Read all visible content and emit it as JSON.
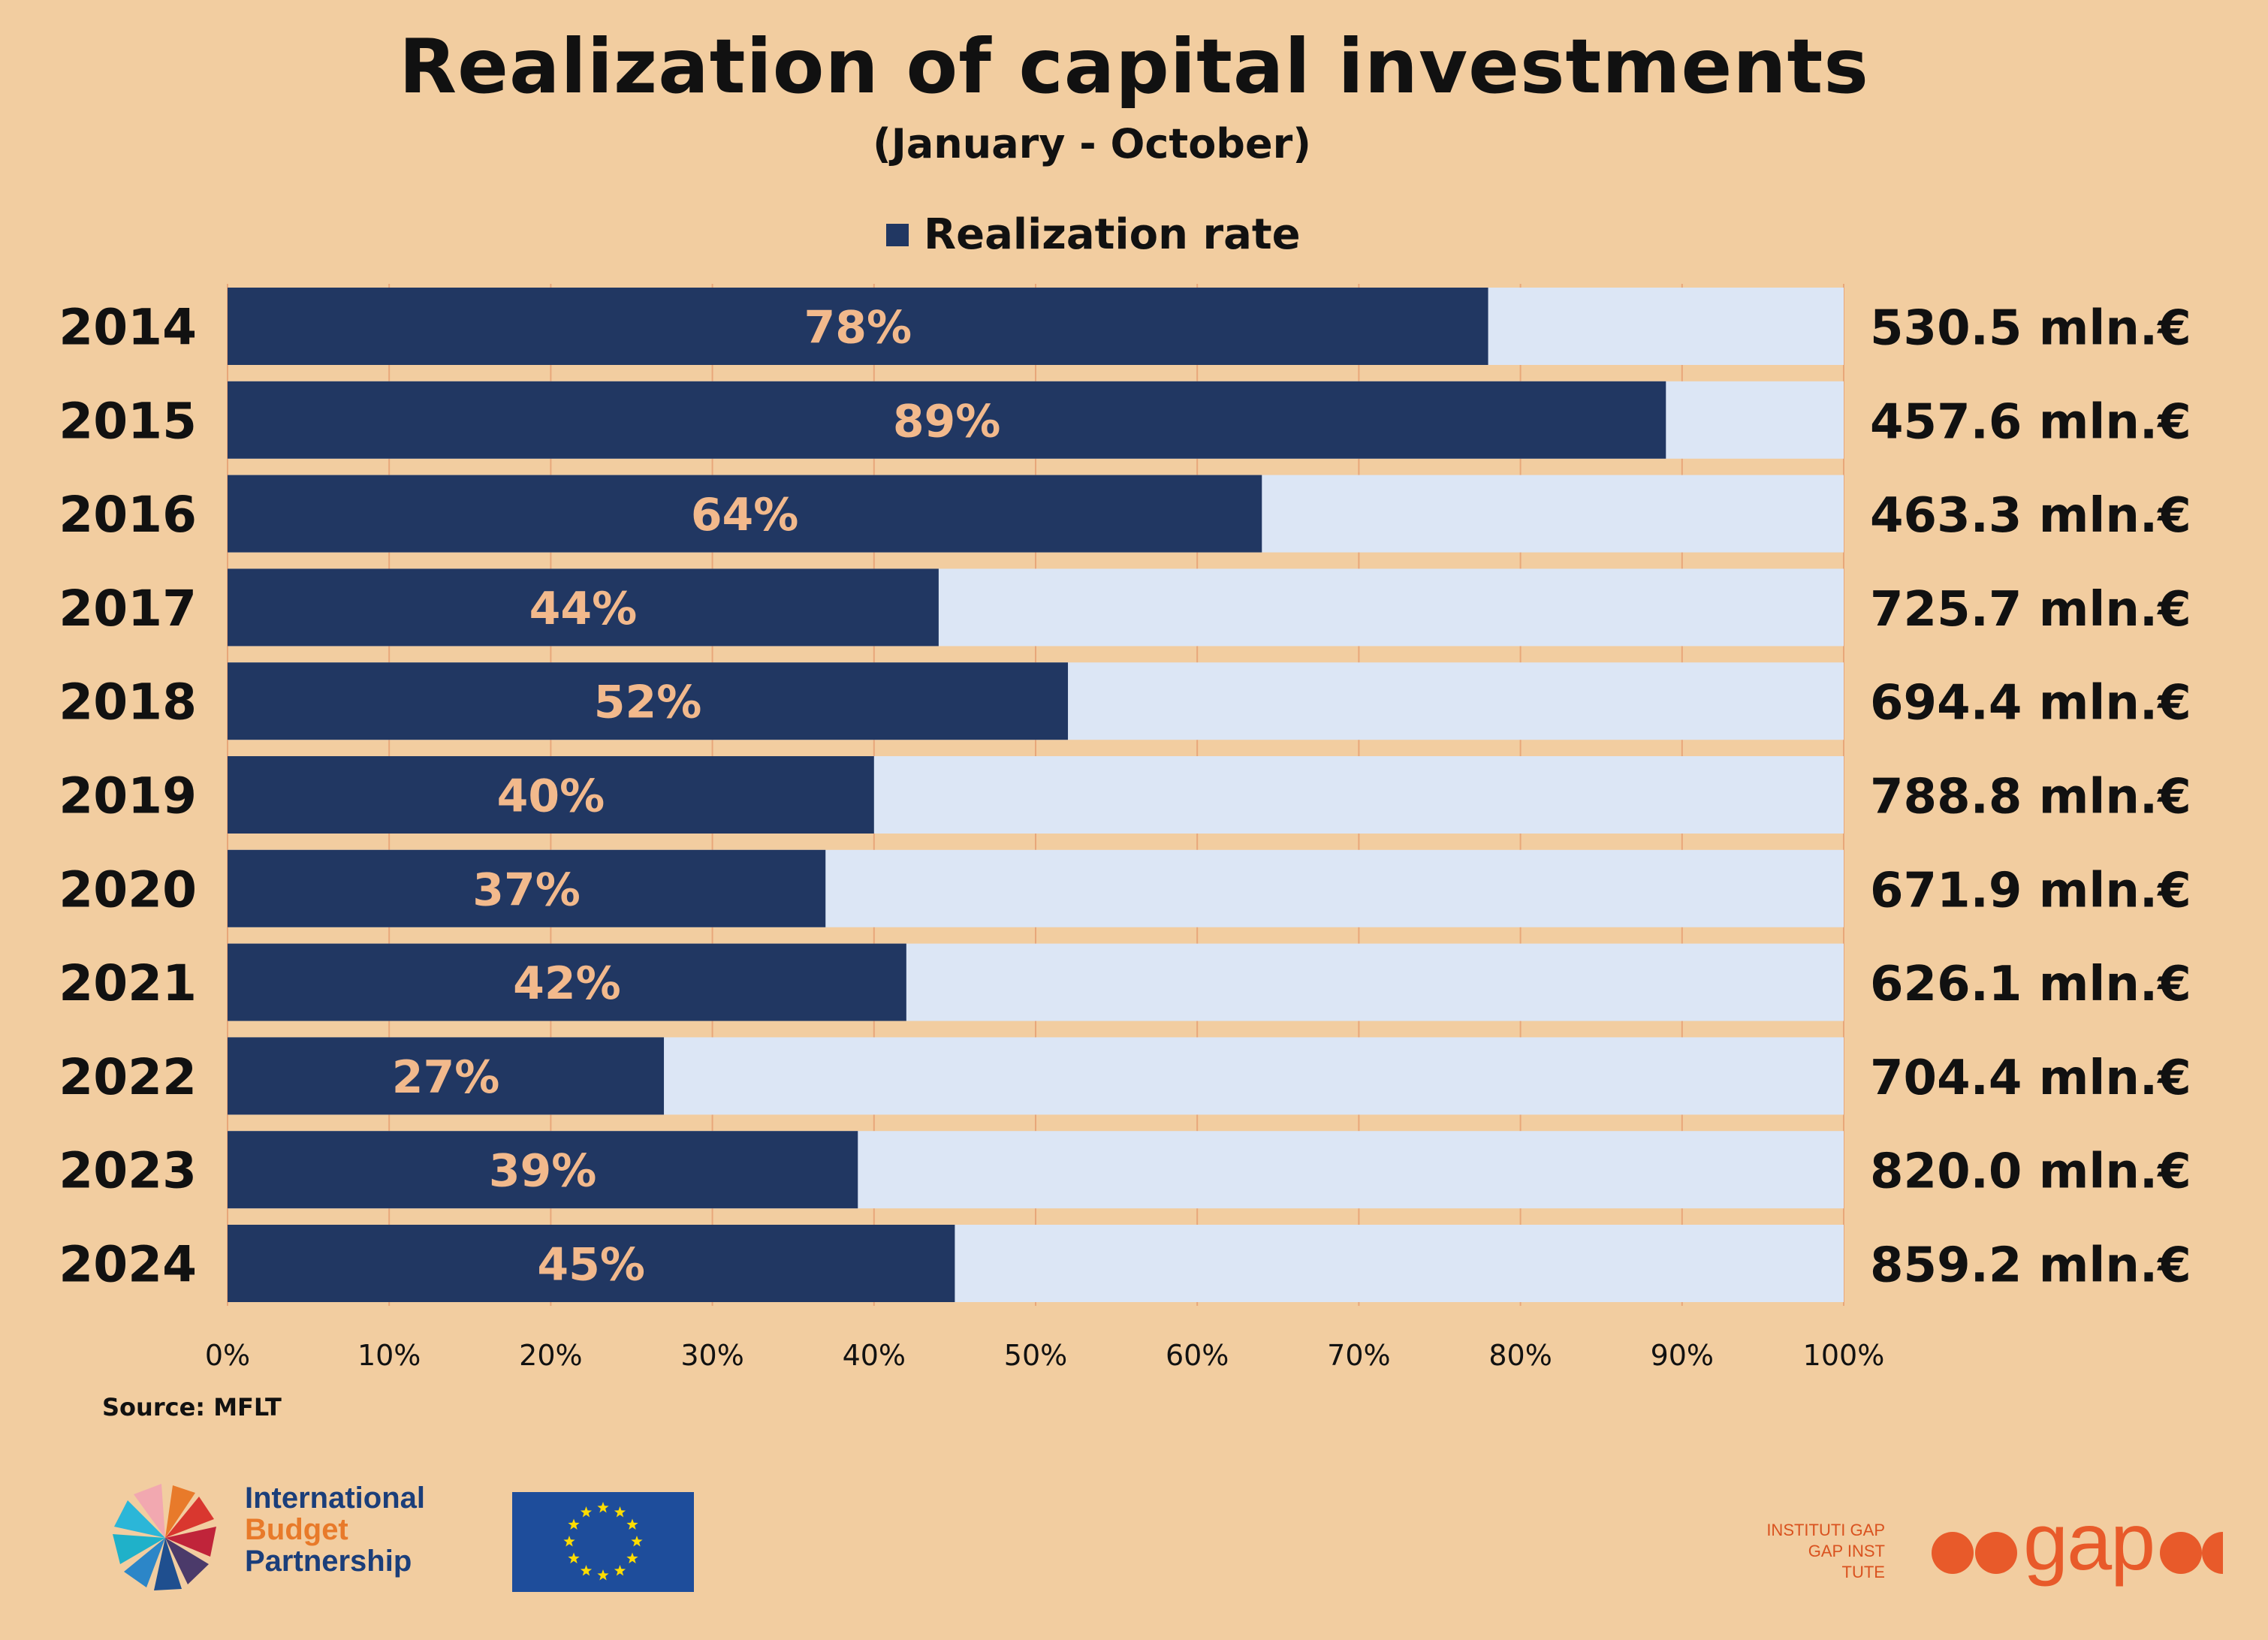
{
  "header": {
    "title": "Realization of capital investments",
    "subtitle": "(January - October)"
  },
  "legend": {
    "label": "Realization rate"
  },
  "source": "Source: MFLT",
  "logos": {
    "ibp": {
      "line1": "International",
      "line2": "Budget",
      "line3": "Partnership"
    },
    "gap": {
      "small_line1": "INSTITUTI GAP",
      "small_line2": "GAP INST TUTE",
      "word": "gap"
    }
  },
  "colors": {
    "background": "#F2CDA0",
    "bar": "#213762",
    "remainder": "#DCE6F5",
    "bar_label": "#F2B98C",
    "grid": "#E8A77A"
  },
  "chart_data": {
    "type": "bar",
    "orientation": "horizontal",
    "stacked_to_100": true,
    "categories": [
      "2014",
      "2015",
      "2016",
      "2017",
      "2018",
      "2019",
      "2020",
      "2021",
      "2022",
      "2023",
      "2024"
    ],
    "series": [
      {
        "name": "Realization rate",
        "values": [
          78,
          89,
          64,
          44,
          52,
          40,
          37,
          42,
          27,
          39,
          45
        ]
      }
    ],
    "value_labels": [
      "78%",
      "89%",
      "64%",
      "44%",
      "52%",
      "40%",
      "37%",
      "42%",
      "27%",
      "39%",
      "45%"
    ],
    "right_labels": [
      "530.5 mln.€",
      "457.6 mln.€",
      "463.3 mln.€",
      "725.7 mln.€",
      "694.4 mln.€",
      "788.8 mln.€",
      "671.9 mln.€",
      "626.1 mln.€",
      "704.4 mln.€",
      "820.0 mln.€",
      "859.2 mln.€"
    ],
    "xlim": [
      0,
      100
    ],
    "x_ticks": [
      "0%",
      "10%",
      "20%",
      "30%",
      "40%",
      "50%",
      "60%",
      "70%",
      "80%",
      "90%",
      "100%"
    ],
    "grid": true,
    "legend_position": "top"
  }
}
